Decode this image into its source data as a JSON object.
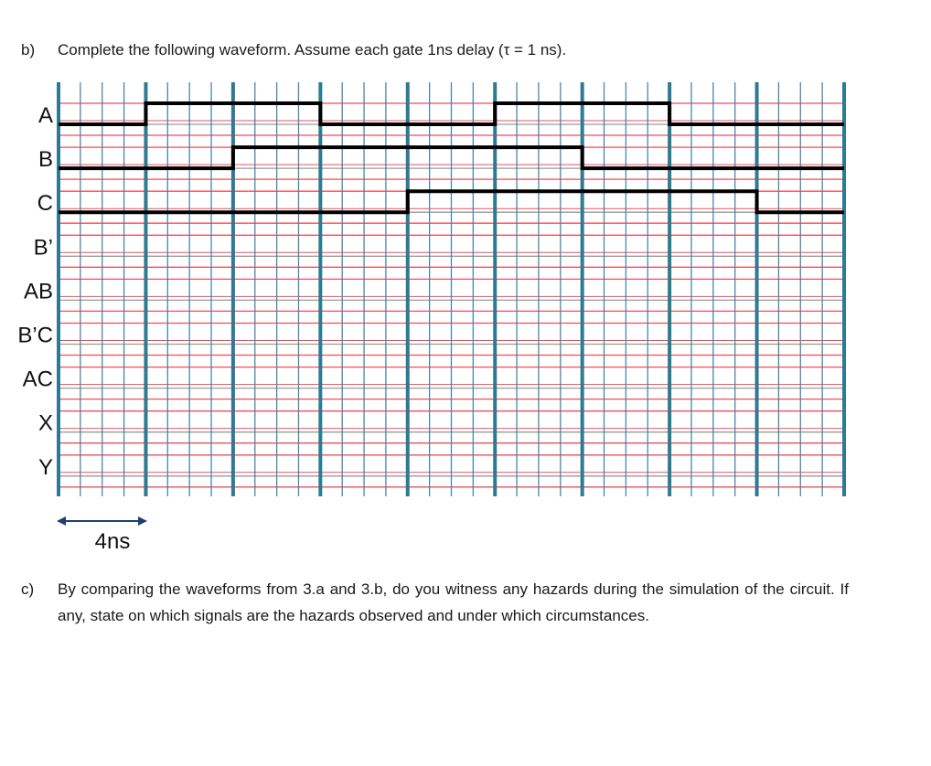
{
  "question_b": {
    "label": "b)",
    "text": "Complete the following waveform. Assume each gate 1ns delay (τ = 1 ns)."
  },
  "question_c": {
    "label": "c)",
    "text": "By comparing the waveforms from 3.a and 3.b, do you witness any hazards during the simulation of the circuit. If any, state on which signals are the hazards observed and under which circumstances."
  },
  "timing_diagram": {
    "signals": [
      {
        "name": "A",
        "transitions": [
          0,
          4,
          12,
          20,
          28
        ],
        "initial": 0,
        "drawn": true
      },
      {
        "name": "B",
        "transitions": [
          0,
          8,
          24
        ],
        "initial": 0,
        "drawn": true
      },
      {
        "name": "C",
        "transitions": [
          0,
          16,
          32
        ],
        "initial": 0,
        "drawn": true
      },
      {
        "name": "B’",
        "drawn": false
      },
      {
        "name": "AB",
        "drawn": false
      },
      {
        "name": "B’C",
        "drawn": false
      },
      {
        "name": "AC",
        "drawn": false
      },
      {
        "name": "X",
        "drawn": false
      },
      {
        "name": "Y",
        "drawn": false
      }
    ],
    "total_time_ns": 36,
    "major_every_ns": 4,
    "scale_label": "4ns",
    "colors": {
      "minor_grid": "#4a86a8",
      "major_grid": "#2e7a93",
      "red_rule": "#e8525a",
      "gray_rule": "#9a9a9a",
      "signal": "#000000",
      "arrow": "#1f3f6e"
    }
  }
}
